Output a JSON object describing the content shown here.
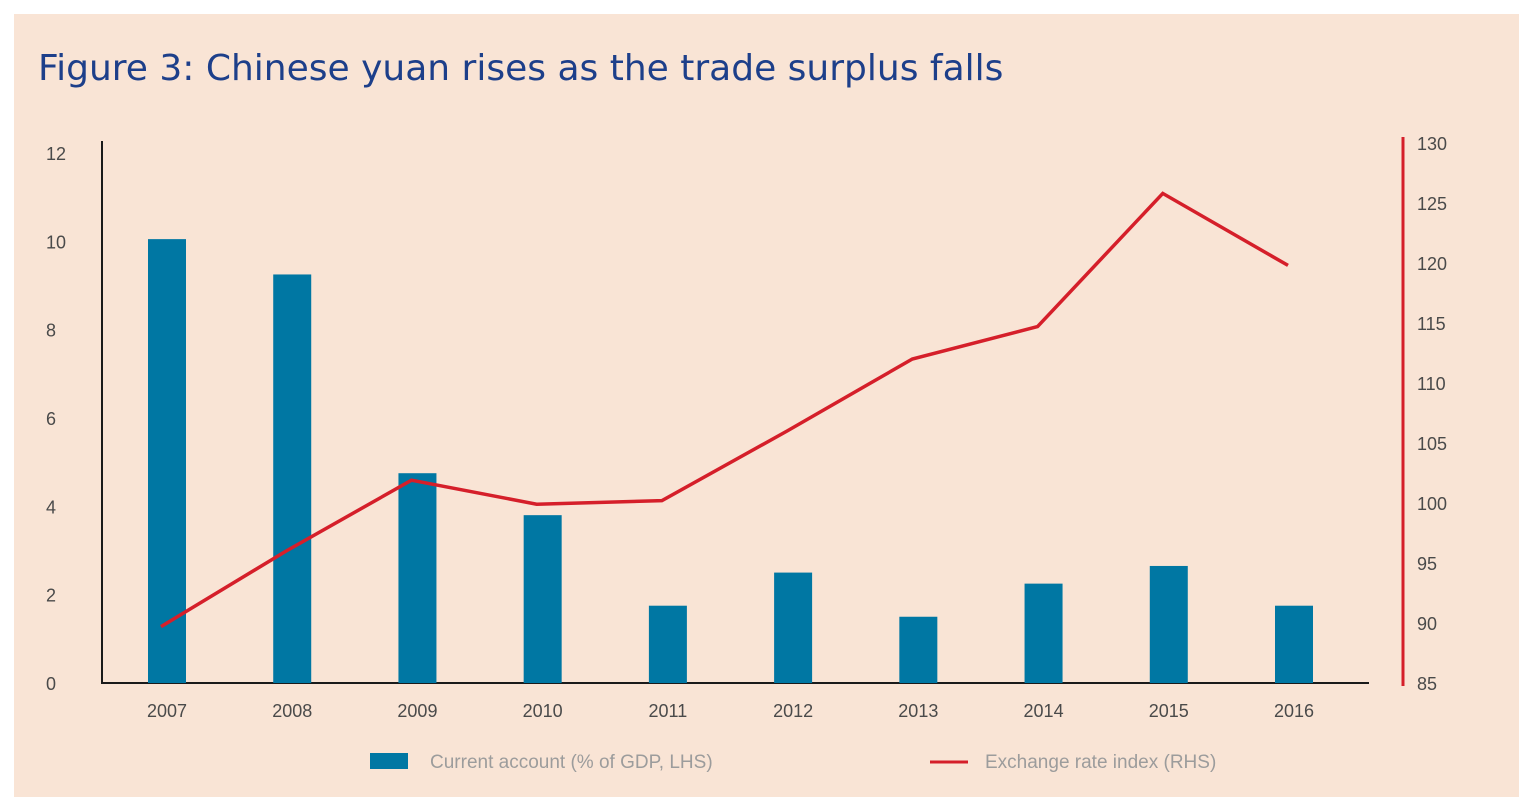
{
  "chart_data": {
    "type": "bar+line",
    "title": "Figure 3: Chinese yuan rises as the trade surplus falls",
    "categories": [
      "2007",
      "2008",
      "2009",
      "2010",
      "2011",
      "2012",
      "2013",
      "2014",
      "2015",
      "2016"
    ],
    "series": [
      {
        "name": "Current account (% of GDP, LHS)",
        "type": "bar",
        "axis": "left",
        "values": [
          10.05,
          9.25,
          4.75,
          3.8,
          1.75,
          2.5,
          1.5,
          2.25,
          2.65,
          1.75
        ]
      },
      {
        "name": "Exchange rate index (RHS)",
        "type": "line",
        "axis": "right",
        "values": [
          89.7,
          96.0,
          101.9,
          99.9,
          100.2,
          106.0,
          112.0,
          114.7,
          125.8,
          119.8
        ]
      }
    ],
    "y_left": {
      "ylim": [
        0,
        12
      ],
      "ticks": [
        "0",
        "2",
        "4",
        "6",
        "8",
        "10",
        "12"
      ]
    },
    "y_right": {
      "ylim": [
        85,
        130
      ],
      "ticks": [
        "85",
        "90",
        "95",
        "100",
        "105",
        "110",
        "115",
        "120",
        "125",
        "130"
      ]
    },
    "grid": false,
    "legend": "bottom",
    "colors": {
      "bar": "#0077a3",
      "line": "#d51f2a",
      "title": "#1d3f8a",
      "background": "#f9e4d5"
    }
  }
}
